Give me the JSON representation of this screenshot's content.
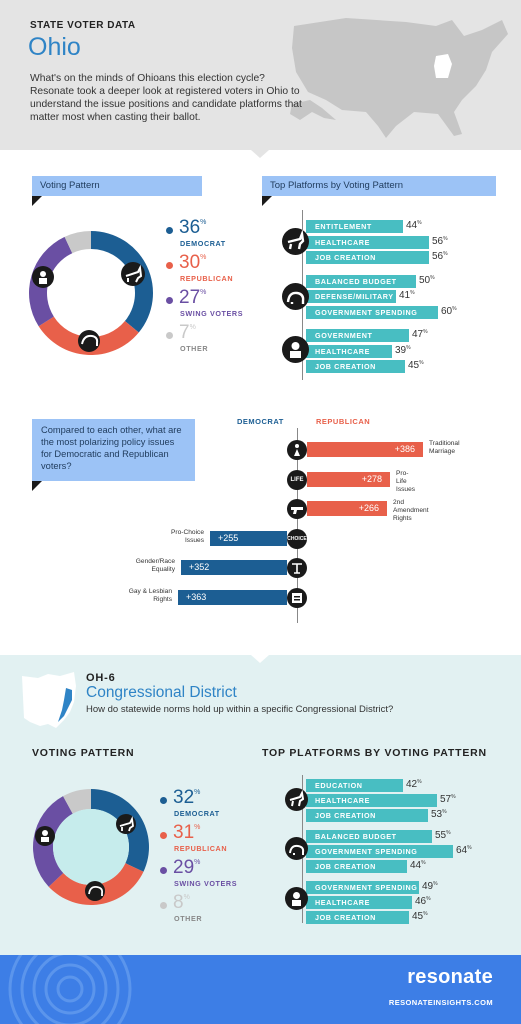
{
  "header": {
    "kicker": "STATE VOTER DATA",
    "title": "Ohio",
    "intro": "What's on the minds of Ohioans this election cycle? Resonate took a deeper look at registered voters in Ohio to understand the issue positions and candidate platforms that matter most when casting their ballot."
  },
  "state": {
    "voting_pattern_label": "Voting Pattern",
    "platforms_label": "Top Platforms by Voting Pattern",
    "legend": [
      {
        "pct": "36",
        "label": "DEMOCRAT",
        "color": "#1c5e93"
      },
      {
        "pct": "30",
        "label": "REPUBLICAN",
        "color": "#e8604a"
      },
      {
        "pct": "27",
        "label": "SWING VOTERS",
        "color": "#6a4fa3"
      },
      {
        "pct": "7",
        "label": "OTHER",
        "color": "#c9c9c9"
      }
    ],
    "donut": [
      36,
      30,
      27,
      7
    ],
    "platforms": [
      {
        "label": "ENTITLEMENT",
        "value": "44",
        "v": 44
      },
      {
        "label": "HEALTHCARE",
        "value": "56",
        "v": 56
      },
      {
        "label": "JOB CREATION",
        "value": "56",
        "v": 56
      },
      {
        "label": "BALANCED BUDGET",
        "value": "50",
        "v": 50
      },
      {
        "label": "DEFENSE/MILITARY",
        "value": "41",
        "v": 41
      },
      {
        "label": "GOVERNMENT SPENDING",
        "value": "60",
        "v": 60
      },
      {
        "label": "GOVERNMENT SPENDING",
        "value": "47",
        "v": 47
      },
      {
        "label": "HEALTHCARE",
        "value": "39",
        "v": 39
      },
      {
        "label": "JOB CREATION",
        "value": "45",
        "v": 45
      }
    ]
  },
  "polarizing": {
    "question": "Compared to each other, what are the most polarizing policy issues for Democratic and Republican voters?",
    "dem_label": "DEMOCRAT",
    "rep_label": "REPUBLICAN",
    "rep_items": [
      {
        "value": "+386",
        "v": 386,
        "issue_line1": "Traditional",
        "issue_line2": "Marriage"
      },
      {
        "value": "+278",
        "v": 278,
        "issue_line1": "Pro-Life",
        "issue_line2": "Issues"
      },
      {
        "value": "+266",
        "v": 266,
        "issue_line1": "2nd Amendment",
        "issue_line2": "Rights"
      }
    ],
    "dem_items": [
      {
        "value": "+255",
        "v": 255,
        "issue_line1": "Pro-Choice",
        "issue_line2": "Issues"
      },
      {
        "value": "+352",
        "v": 352,
        "issue_line1": "Gender/Race",
        "issue_line2": "Equality"
      },
      {
        "value": "+363",
        "v": 363,
        "issue_line1": "Gay & Lesbian",
        "issue_line2": "Rights"
      }
    ],
    "icons": [
      "person-icon",
      "life-icon",
      "gun-icon",
      "choice-icon",
      "scales-icon",
      "equal-icon"
    ],
    "icon_text": {
      "life": "LIFE",
      "choice": "CHOICE"
    }
  },
  "district": {
    "title": "OH-6",
    "subtitle": "Congressional District",
    "question": "How do statewide norms hold up within a specific Congressional District?",
    "voting_pattern_label": "VOTING PATTERN",
    "platforms_label": "TOP PLATFORMS BY VOTING PATTERN",
    "legend": [
      {
        "pct": "32",
        "label": "DEMOCRAT",
        "color": "#1c5e93"
      },
      {
        "pct": "31",
        "label": "REPUBLICAN",
        "color": "#e8604a"
      },
      {
        "pct": "29",
        "label": "SWING VOTERS",
        "color": "#6a4fa3"
      },
      {
        "pct": "8",
        "label": "OTHER",
        "color": "#c9c9c9"
      }
    ],
    "donut": [
      32,
      31,
      29,
      8
    ],
    "platforms": [
      {
        "label": "EDUCATION",
        "value": "42",
        "v": 42
      },
      {
        "label": "HEALTHCARE",
        "value": "57",
        "v": 57
      },
      {
        "label": "JOB CREATION",
        "value": "53",
        "v": 53
      },
      {
        "label": "BALANCED BUDGET",
        "value": "55",
        "v": 55
      },
      {
        "label": "GOVERNMENT SPENDING",
        "value": "64",
        "v": 64
      },
      {
        "label": "JOB CREATION",
        "value": "44",
        "v": 44
      },
      {
        "label": "GOVERNMENT SPENDING",
        "value": "49",
        "v": 49
      },
      {
        "label": "HEALTHCARE",
        "value": "46",
        "v": 46
      },
      {
        "label": "JOB CREATION",
        "value": "45",
        "v": 45
      }
    ]
  },
  "footer": {
    "logo": "resonate",
    "site": "RESONATEINSIGHTS.COM"
  },
  "percent_sign": "%"
}
